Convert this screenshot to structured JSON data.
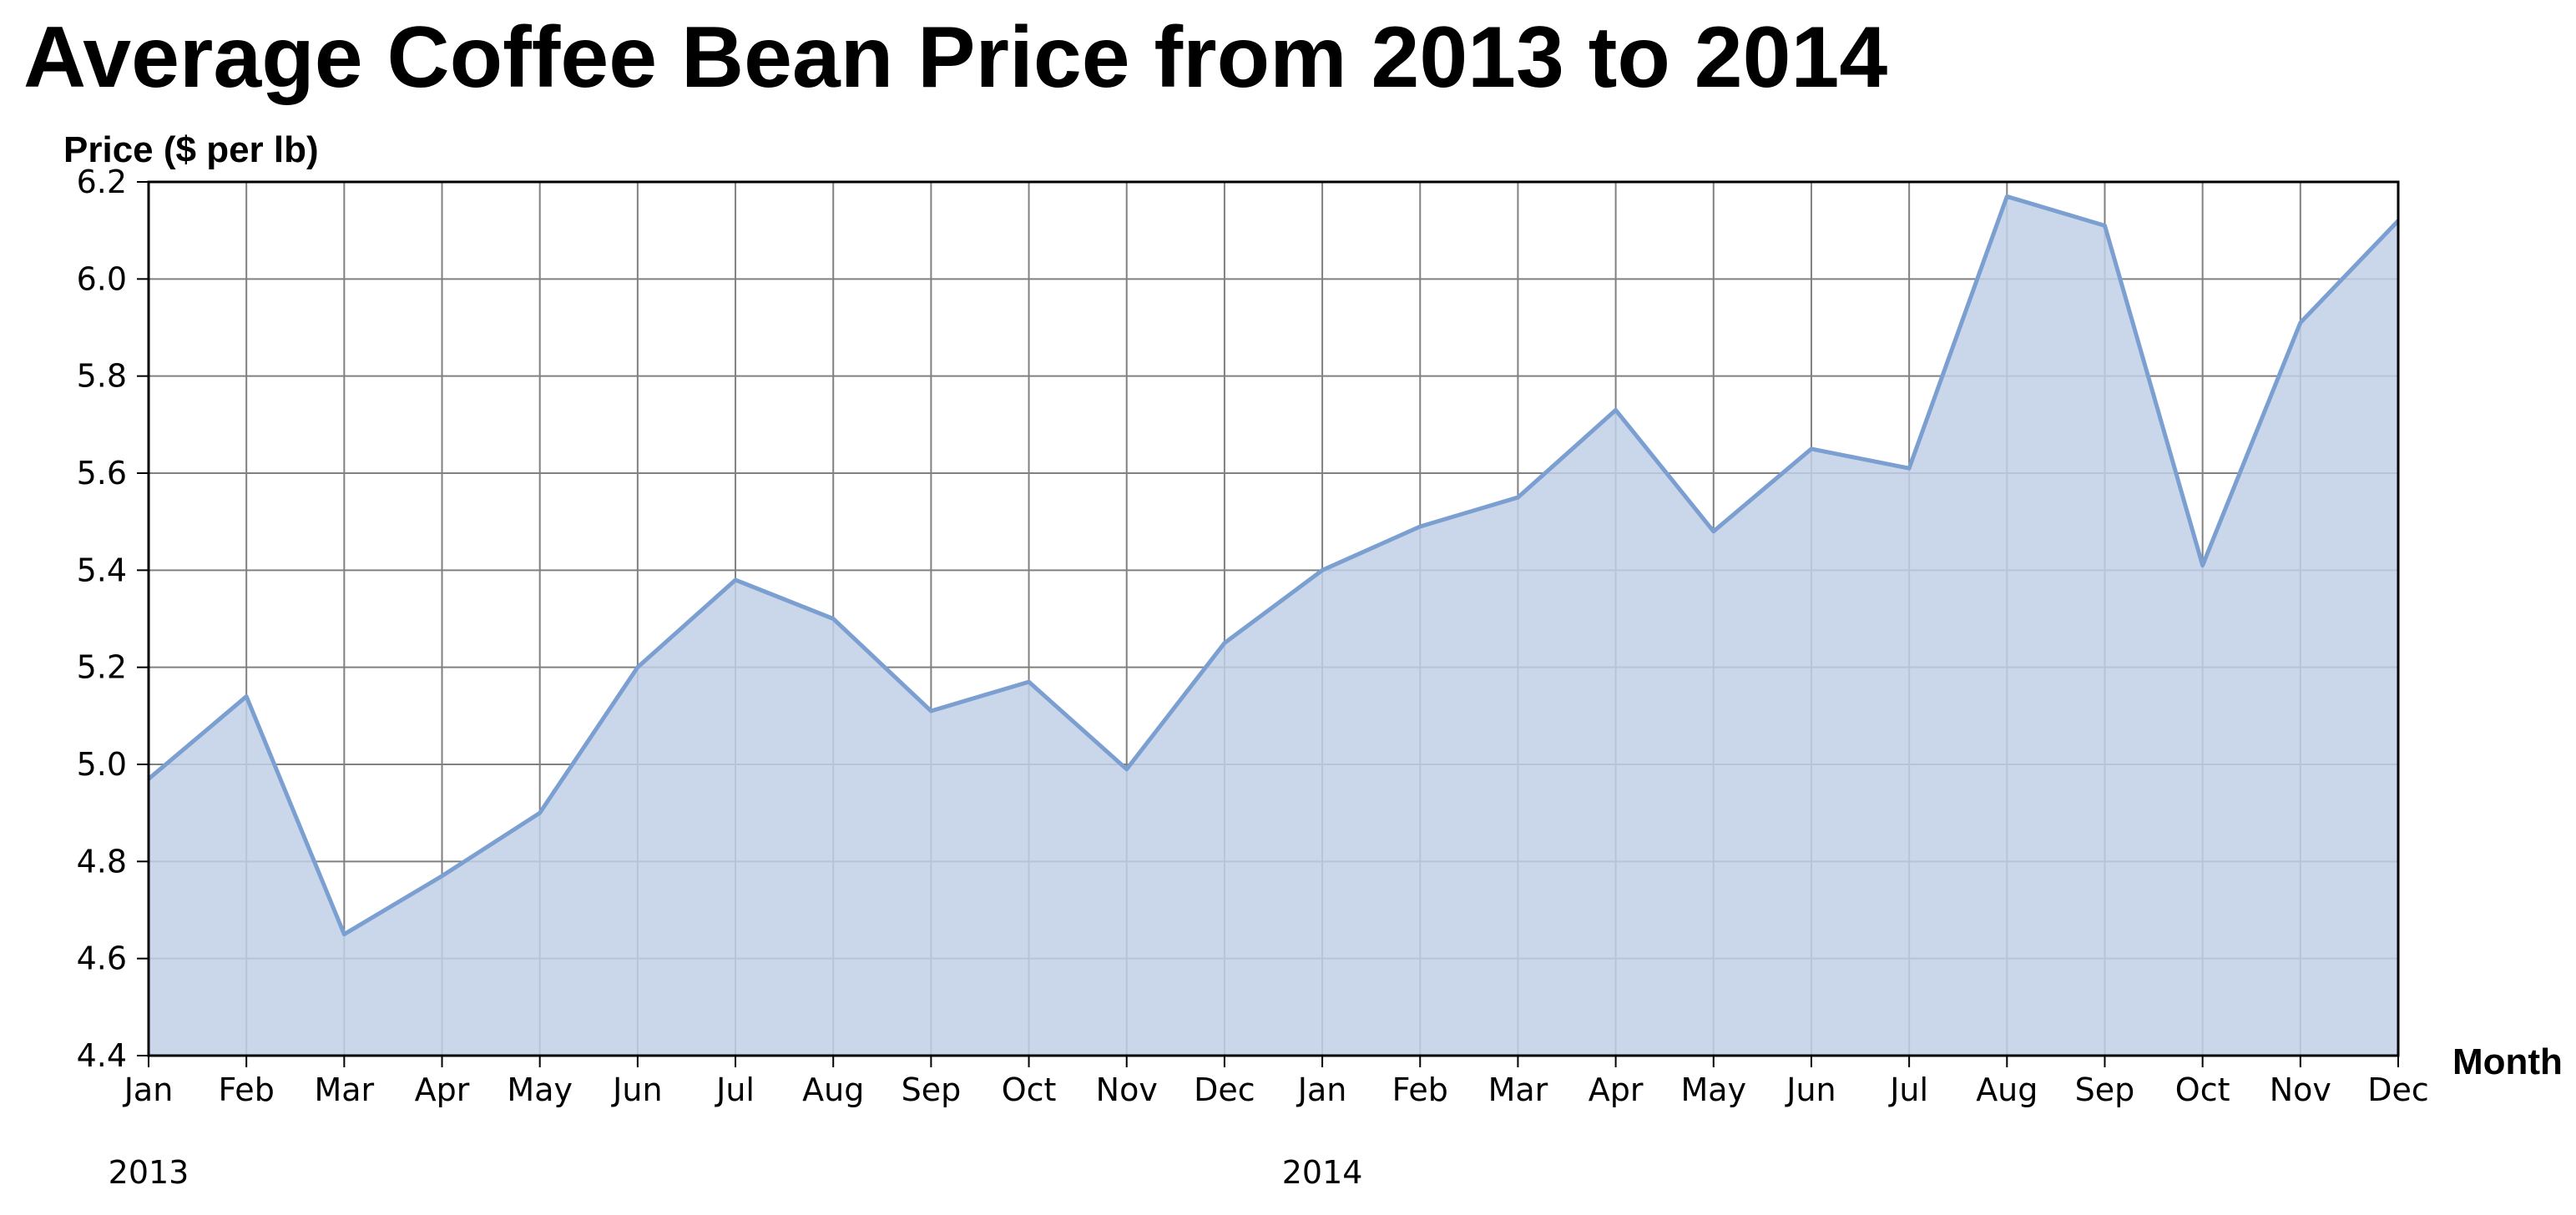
{
  "chart_data": {
    "type": "area",
    "title": "Average Coffee Bean Price from 2013 to 2014",
    "xlabel": "Month",
    "ylabel": "Price ($ per lb)",
    "ylim": [
      4.4,
      6.2
    ],
    "yticks": [
      "4.4",
      "4.6",
      "4.8",
      "5.0",
      "5.2",
      "5.4",
      "5.6",
      "5.8",
      "6.0",
      "6.2"
    ],
    "grid": true,
    "colors": {
      "line": "#7b9fd0",
      "fill": "#c1d0e8",
      "grid": "#808080",
      "axis": "#000000"
    },
    "x": [
      "Jan",
      "Feb",
      "Mar",
      "Apr",
      "May",
      "Jun",
      "Jul",
      "Aug",
      "Sep",
      "Oct",
      "Nov",
      "Dec",
      "Jan",
      "Feb",
      "Mar",
      "Apr",
      "May",
      "Jun",
      "Jul",
      "Aug",
      "Sep",
      "Oct",
      "Nov",
      "Dec"
    ],
    "year_labels": [
      {
        "label": "2013",
        "at": 0
      },
      {
        "label": "2014",
        "at": 12
      }
    ],
    "series": [
      {
        "values": [
          4.97,
          5.14,
          4.65,
          4.77,
          4.9,
          5.2,
          5.38,
          5.3,
          5.11,
          5.17,
          4.99,
          5.25,
          5.4,
          5.49,
          5.55,
          5.73,
          5.48,
          5.65,
          5.61,
          6.17,
          6.11,
          5.41,
          5.91,
          6.12
        ]
      }
    ]
  }
}
